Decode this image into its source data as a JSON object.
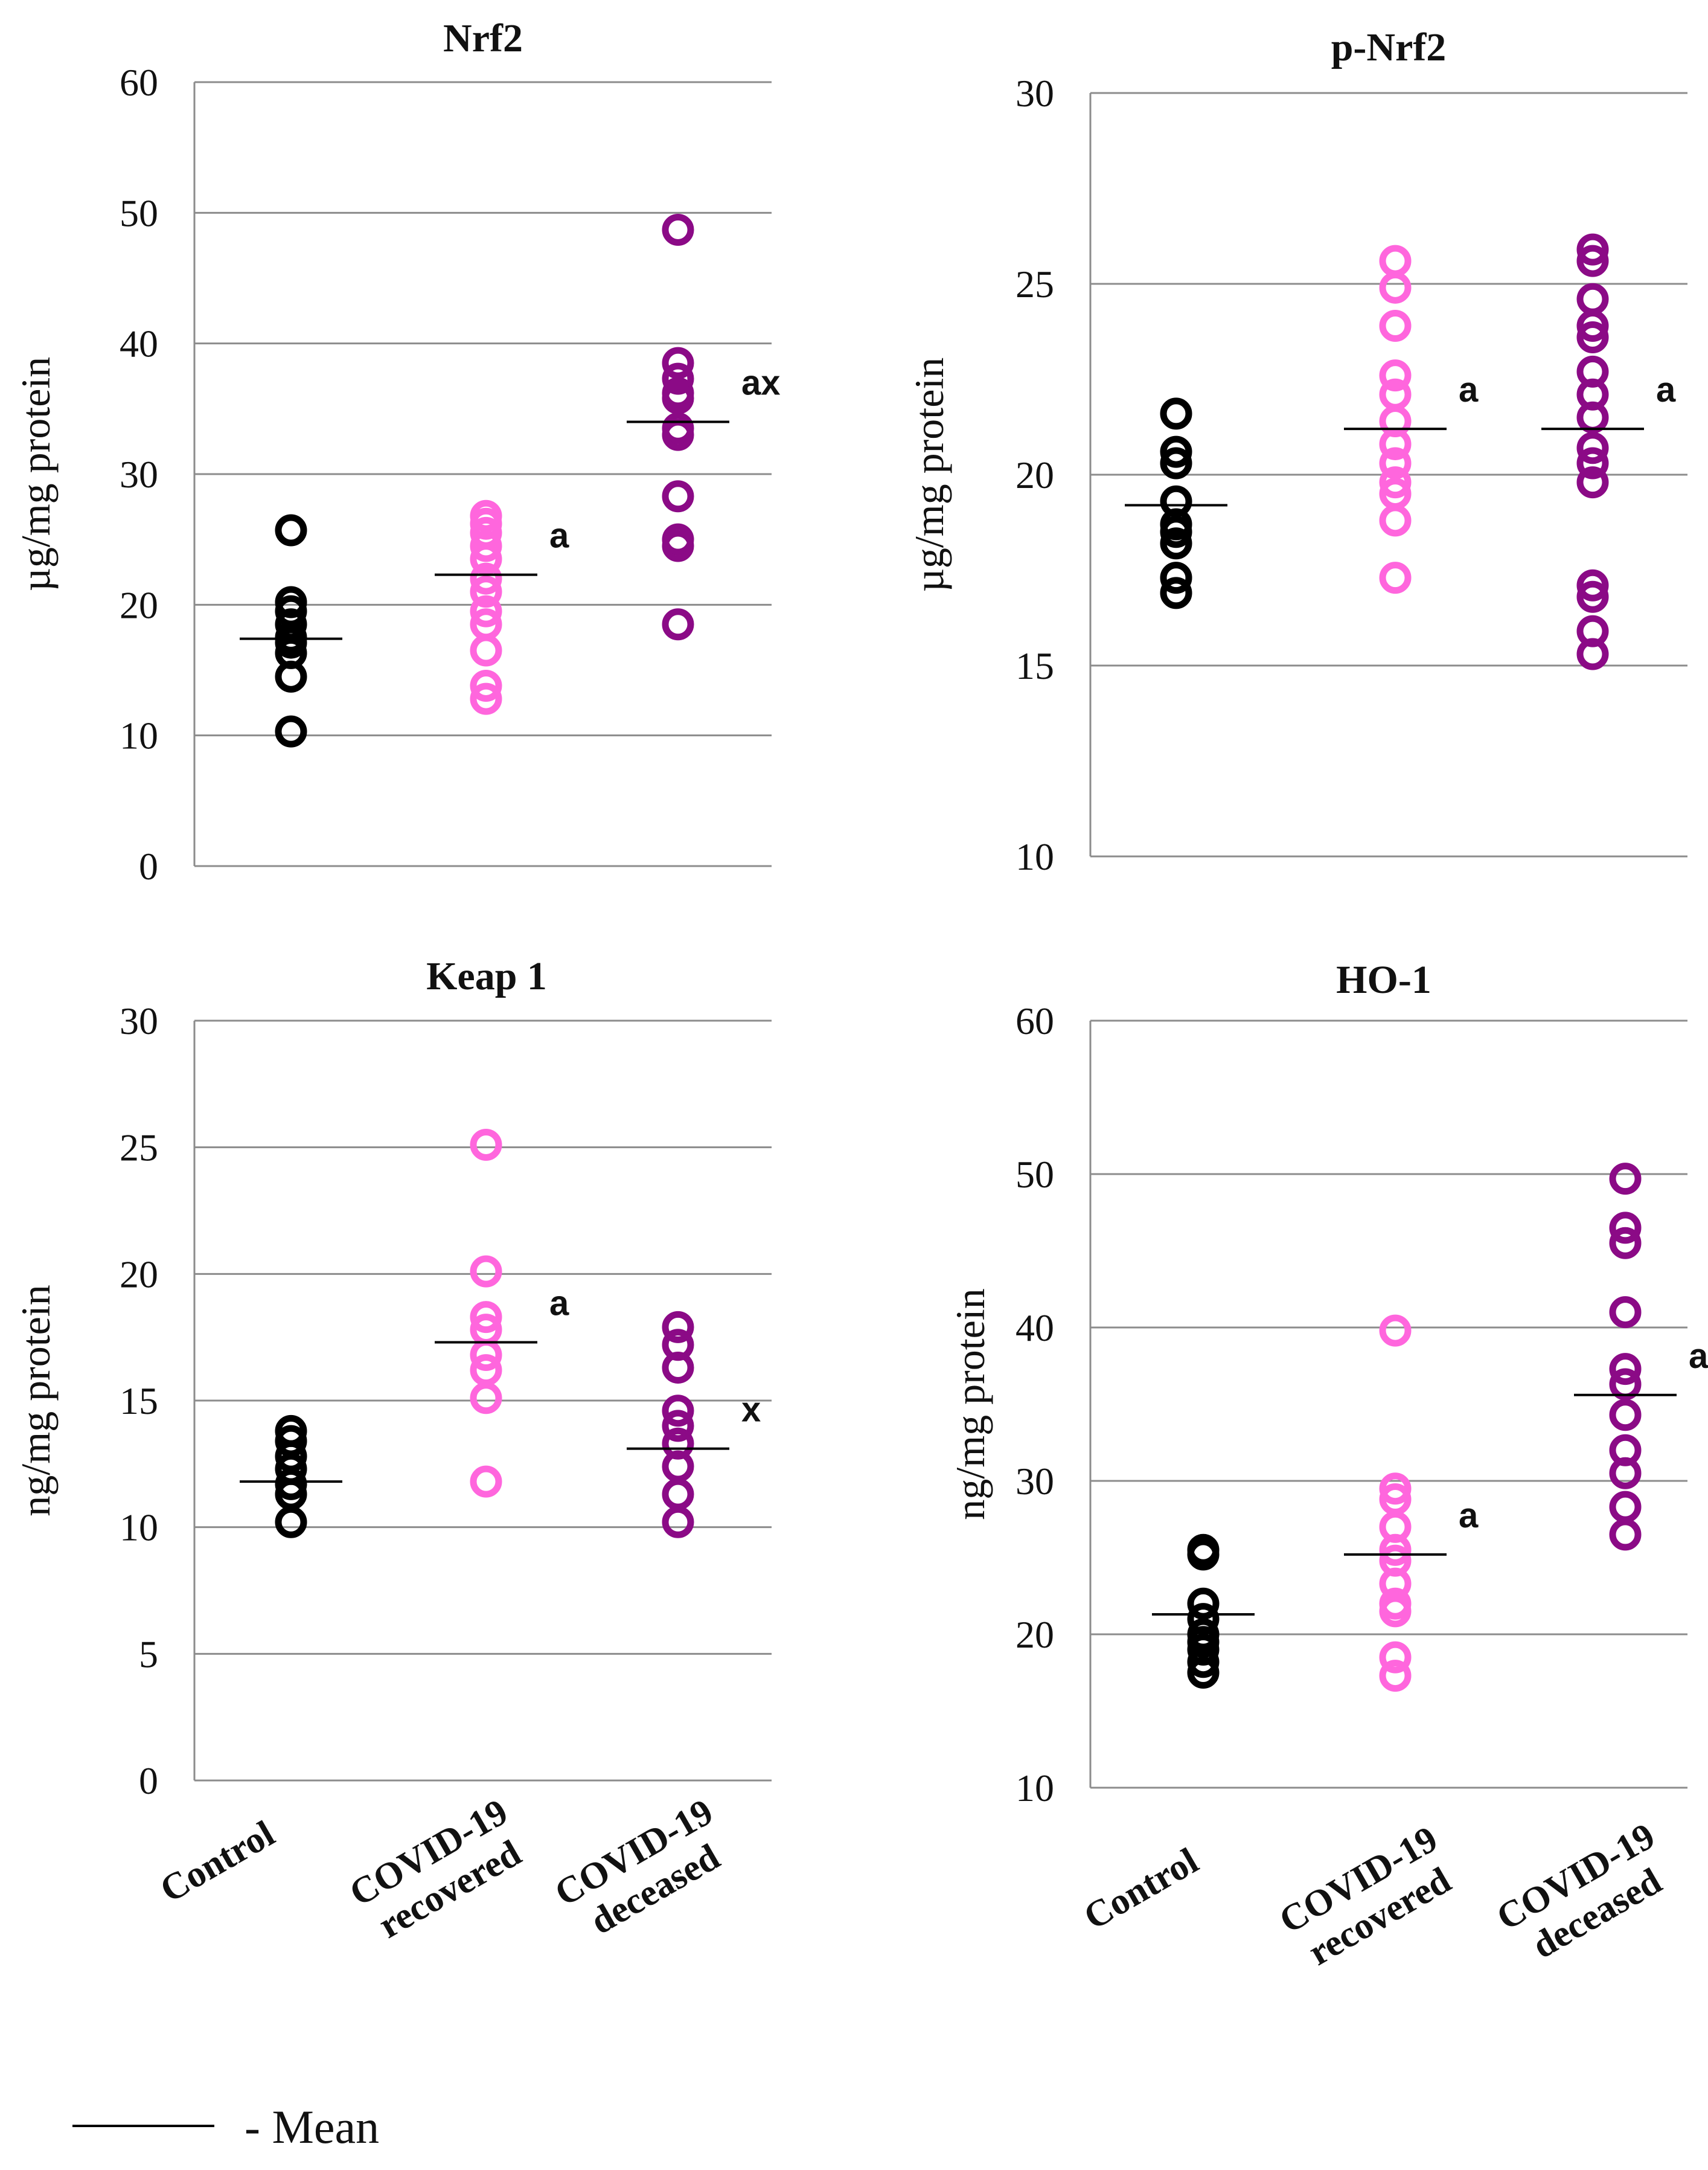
{
  "colors": {
    "Control": "#000000",
    "COVID-19 recovered": "#ff66dd",
    "COVID-19 deceased": "#8b0a86"
  },
  "legend": {
    "label": "- Mean"
  },
  "chart_data": [
    {
      "type": "scatter",
      "title": "Nrf2",
      "ylabel": "µg/mg protein",
      "ylim": [
        0,
        60
      ],
      "yticks": [
        0,
        10,
        20,
        30,
        40,
        50,
        60
      ],
      "categories": [
        "Control",
        "COVID-19 recovered",
        "COVID-19 deceased"
      ],
      "series": [
        {
          "name": "Control",
          "values": [
            25.7,
            20.2,
            19.5,
            18.5,
            17.5,
            17.1,
            16.3,
            14.5,
            10.3
          ],
          "mean": 17.4,
          "sig": ""
        },
        {
          "name": "COVID-19 recovered",
          "values": [
            26.8,
            26.2,
            25.5,
            24.5,
            23.5,
            22.0,
            21.0,
            19.5,
            18.5,
            16.5,
            13.8,
            12.8
          ],
          "mean": 22.3,
          "sig": "a"
        },
        {
          "name": "COVID-19 deceased",
          "values": [
            48.7,
            38.5,
            37.3,
            36.2,
            35.8,
            33.5,
            33.0,
            28.3,
            25.0,
            24.5,
            18.5
          ],
          "mean": 34.0,
          "sig": "ax"
        }
      ]
    },
    {
      "type": "scatter",
      "title": "p-Nrf2",
      "ylabel": "µg/mg protein",
      "ylim": [
        10,
        30
      ],
      "yticks": [
        10,
        15,
        20,
        25,
        30
      ],
      "categories": [
        "Control",
        "COVID-19 recovered",
        "COVID-19 deceased"
      ],
      "series": [
        {
          "name": "Control",
          "values": [
            21.6,
            20.6,
            20.3,
            19.3,
            18.7,
            18.5,
            18.2,
            17.3,
            16.9
          ],
          "mean": 19.2,
          "sig": ""
        },
        {
          "name": "COVID-19 recovered",
          "values": [
            25.6,
            24.9,
            23.9,
            22.6,
            22.1,
            21.4,
            20.8,
            20.3,
            19.8,
            19.5,
            18.8,
            17.3
          ],
          "mean": 21.2,
          "sig": "a"
        },
        {
          "name": "COVID-19 deceased",
          "values": [
            25.9,
            25.6,
            24.6,
            23.9,
            23.6,
            22.7,
            22.1,
            21.5,
            20.7,
            20.3,
            19.8,
            17.1,
            16.8,
            15.9,
            15.3
          ],
          "mean": 21.2,
          "sig": "a"
        }
      ]
    },
    {
      "type": "scatter",
      "title": "Keap 1",
      "ylabel": "ng/mg protein",
      "ylim": [
        0,
        30
      ],
      "yticks": [
        0,
        5,
        10,
        15,
        20,
        25,
        30
      ],
      "categories": [
        "Control",
        "COVID-19 recovered",
        "COVID-19 deceased"
      ],
      "series": [
        {
          "name": "Control",
          "values": [
            13.8,
            13.4,
            12.8,
            12.3,
            11.7,
            11.3,
            10.2
          ],
          "mean": 11.8,
          "sig": ""
        },
        {
          "name": "COVID-19 recovered",
          "values": [
            25.1,
            20.1,
            18.3,
            17.8,
            16.8,
            16.2,
            15.1,
            11.8
          ],
          "mean": 17.3,
          "sig": "a"
        },
        {
          "name": "COVID-19 deceased",
          "values": [
            17.9,
            17.2,
            16.3,
            14.6,
            14.0,
            13.3,
            12.4,
            11.3,
            10.2
          ],
          "mean": 13.1,
          "sig": "x"
        }
      ]
    },
    {
      "type": "scatter",
      "title": "HO-1",
      "ylabel": "ng/mg protein",
      "ylim": [
        10,
        60
      ],
      "yticks": [
        10,
        20,
        30,
        40,
        50,
        60
      ],
      "categories": [
        "Control",
        "COVID-19 recovered",
        "COVID-19 deceased"
      ],
      "series": [
        {
          "name": "Control",
          "values": [
            25.5,
            25.2,
            22.0,
            21.0,
            20.0,
            19.5,
            19.0,
            18.2,
            17.5
          ],
          "mean": 21.3,
          "sig": ""
        },
        {
          "name": "COVID-19 recovered",
          "values": [
            39.8,
            29.5,
            28.8,
            27.0,
            25.5,
            24.8,
            23.3,
            22.0,
            21.5,
            18.5,
            17.3
          ],
          "mean": 25.2,
          "sig": "a"
        },
        {
          "name": "COVID-19 deceased",
          "values": [
            49.7,
            46.5,
            45.5,
            41.0,
            37.3,
            36.3,
            34.3,
            32.0,
            30.5,
            28.3,
            26.5
          ],
          "mean": 35.6,
          "sig": "ax"
        }
      ]
    }
  ],
  "xlabels": [
    {
      "lines": [
        "Control"
      ]
    },
    {
      "lines": [
        "COVID-19",
        "recovered"
      ]
    },
    {
      "lines": [
        "COVID-19",
        "deceased"
      ]
    }
  ]
}
